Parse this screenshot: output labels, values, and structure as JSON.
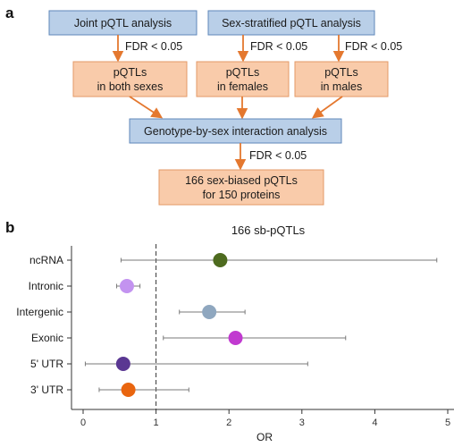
{
  "panel_a": {
    "label": "a",
    "joint": "Joint pQTL analysis",
    "stratified": "Sex-stratified pQTL analysis",
    "fdr": "FDR < 0.05",
    "both_l1": "pQTLs",
    "both_l2": "in both sexes",
    "females_l1": "pQTLs",
    "females_l2": "in females",
    "males_l1": "pQTLs",
    "males_l2": "in males",
    "interaction": "Genotype-by-sex interaction analysis",
    "result_l1": "166 sex-biased pQTLs",
    "result_l2": "for 150 proteins",
    "colors": {
      "blue_fill": "#b9cfe8",
      "orange_fill": "#f9cbaa",
      "arrow": "#e4782f"
    }
  },
  "panel_b": {
    "label": "b"
  },
  "chart_data": {
    "type": "scatter",
    "title": "166 sb-pQTLs",
    "xlabel": "OR",
    "ylabel": "",
    "xlim": [
      -0.15,
      5.1
    ],
    "xticks": [
      0,
      1,
      2,
      3,
      4,
      5
    ],
    "reference_line": 1,
    "grid": false,
    "categories": [
      "ncRNA",
      "Intronic",
      "Intergenic",
      "Exonic",
      "5' UTR",
      "3' UTR"
    ],
    "points": [
      {
        "category": "ncRNA",
        "or": 1.88,
        "ci_low": 0.52,
        "ci_high": 4.85,
        "color": "#4e6b1f"
      },
      {
        "category": "Intronic",
        "or": 0.6,
        "ci_low": 0.46,
        "ci_high": 0.78,
        "color": "#c393f0"
      },
      {
        "category": "Intergenic",
        "or": 1.73,
        "ci_low": 1.32,
        "ci_high": 2.22,
        "color": "#8fa7bf"
      },
      {
        "category": "Exonic",
        "or": 2.09,
        "ci_low": 1.1,
        "ci_high": 3.6,
        "color": "#c13ad0"
      },
      {
        "category": "5' UTR",
        "or": 0.55,
        "ci_low": 0.03,
        "ci_high": 3.08,
        "color": "#5a3792"
      },
      {
        "category": "3' UTR",
        "or": 0.62,
        "ci_low": 0.22,
        "ci_high": 1.45,
        "color": "#e9650f"
      }
    ]
  }
}
